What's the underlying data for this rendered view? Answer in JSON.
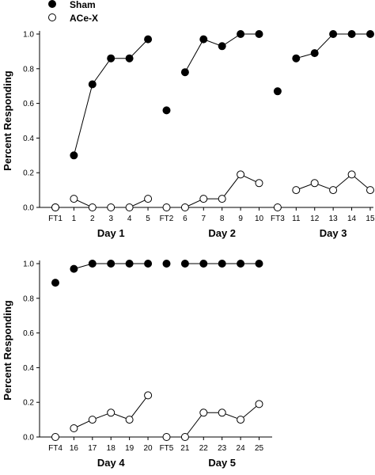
{
  "legend": [
    {
      "label": "Sham",
      "marker": "filled-circle"
    },
    {
      "label": "ACe-X",
      "marker": "open-circle"
    }
  ],
  "colors": {
    "sham": "#000000",
    "acex": "#ffffff",
    "stroke": "#000000"
  },
  "chart_data": [
    {
      "type": "line",
      "ylabel": "Percent Responding",
      "ylim": [
        0,
        1.0
      ],
      "yticks": [
        "0.0",
        "0.2",
        "0.4",
        "0.6",
        "0.8",
        "1.0"
      ],
      "categories": [
        "FT1",
        "1",
        "2",
        "3",
        "4",
        "5",
        "FT2",
        "6",
        "7",
        "8",
        "9",
        "10",
        "FT3",
        "11",
        "12",
        "13",
        "14",
        "15"
      ],
      "groups": [
        {
          "label": "Day 1",
          "categories": [
            "1",
            "2",
            "3",
            "4",
            "5"
          ]
        },
        {
          "label": "Day 2",
          "categories": [
            "6",
            "7",
            "8",
            "9",
            "10"
          ]
        },
        {
          "label": "Day 3",
          "categories": [
            "11",
            "12",
            "13",
            "14",
            "15"
          ]
        }
      ],
      "segments": [
        [
          "FT1"
        ],
        [
          "1",
          "2",
          "3",
          "4",
          "5"
        ],
        [
          "FT2"
        ],
        [
          "6",
          "7",
          "8",
          "9",
          "10"
        ],
        [
          "FT3"
        ],
        [
          "11",
          "12",
          "13",
          "14",
          "15"
        ]
      ],
      "series": [
        {
          "name": "Sham",
          "marker": "filled",
          "values": [
            0.0,
            0.3,
            0.71,
            0.86,
            0.86,
            0.97,
            0.56,
            0.78,
            0.97,
            0.93,
            1.0,
            1.0,
            0.67,
            0.86,
            0.89,
            1.0,
            1.0,
            1.0
          ]
        },
        {
          "name": "ACe-X",
          "marker": "open",
          "values": [
            0.0,
            0.05,
            0.0,
            0.0,
            0.0,
            0.05,
            0.0,
            0.0,
            0.05,
            0.05,
            0.19,
            0.14,
            0.0,
            0.1,
            0.14,
            0.1,
            0.19,
            0.1
          ]
        }
      ]
    },
    {
      "type": "line",
      "ylabel": "Percent Responding",
      "ylim": [
        0,
        1.0
      ],
      "yticks": [
        "0.0",
        "0.2",
        "0.4",
        "0.6",
        "0.8",
        "1.0"
      ],
      "categories": [
        "FT4",
        "16",
        "17",
        "18",
        "19",
        "20",
        "FT5",
        "21",
        "22",
        "23",
        "24",
        "25"
      ],
      "groups": [
        {
          "label": "Day 4",
          "categories": [
            "16",
            "17",
            "18",
            "19",
            "20"
          ]
        },
        {
          "label": "Day 5",
          "categories": [
            "21",
            "22",
            "23",
            "24",
            "25"
          ]
        }
      ],
      "segments": [
        [
          "FT4"
        ],
        [
          "16",
          "17",
          "18",
          "19",
          "20"
        ],
        [
          "FT5"
        ],
        [
          "21",
          "22",
          "23",
          "24",
          "25"
        ]
      ],
      "series": [
        {
          "name": "Sham",
          "marker": "filled",
          "values": [
            0.89,
            0.97,
            1.0,
            1.0,
            1.0,
            1.0,
            1.0,
            1.0,
            1.0,
            1.0,
            1.0,
            1.0
          ]
        },
        {
          "name": "ACe-X",
          "marker": "open",
          "values": [
            0.0,
            0.05,
            0.1,
            0.14,
            0.1,
            0.24,
            0.0,
            0.0,
            0.14,
            0.14,
            0.1,
            0.19
          ]
        }
      ]
    }
  ]
}
